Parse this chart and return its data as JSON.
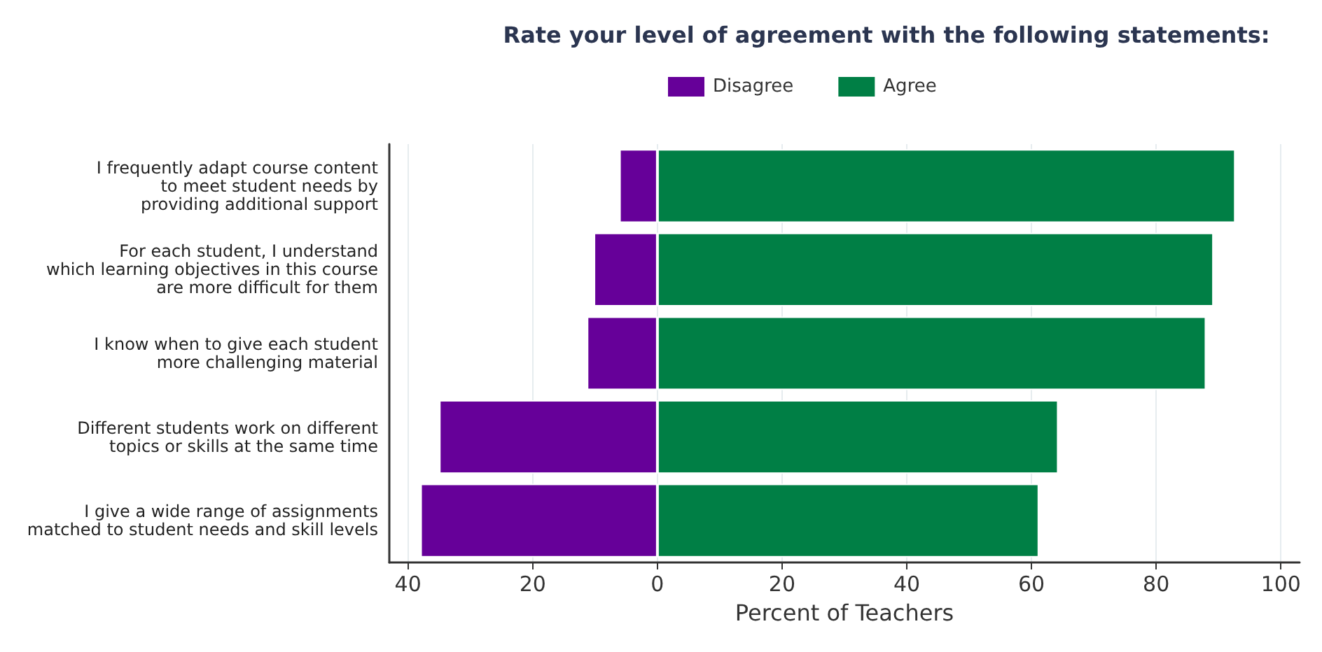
{
  "chart_data": {
    "type": "bar",
    "orientation": "horizontal",
    "stacked": true,
    "title": "Rate your level of agreement with the following statements:",
    "xlabel": "Percent of Teachers",
    "categories": [
      "I frequently adapt course content\nto meet student needs by\nproviding additional support",
      "For each student, I understand\nwhich learning objectives in this course\nare more difficult for them",
      "I know when to give each student\nmore challenging material",
      "Different students work on different\ntopics or skills at the same time",
      "I give a wide range of assignments\nmatched to student needs and skill levels"
    ],
    "series": [
      {
        "name": "Disagree",
        "color": "#660099",
        "values": [
          -6.1,
          -10.2,
          -11.3,
          -35.0,
          -38.0
        ]
      },
      {
        "name": "Agree",
        "color": "#007f45",
        "values": [
          92.7,
          89.2,
          88.0,
          64.3,
          61.2
        ]
      }
    ],
    "xlim": [
      -43,
      103
    ],
    "xticks": [
      {
        "value": -40,
        "label": "40"
      },
      {
        "value": -20,
        "label": "20"
      },
      0,
      20,
      40,
      60,
      80,
      100
    ],
    "grid": "x",
    "legend": "top"
  }
}
